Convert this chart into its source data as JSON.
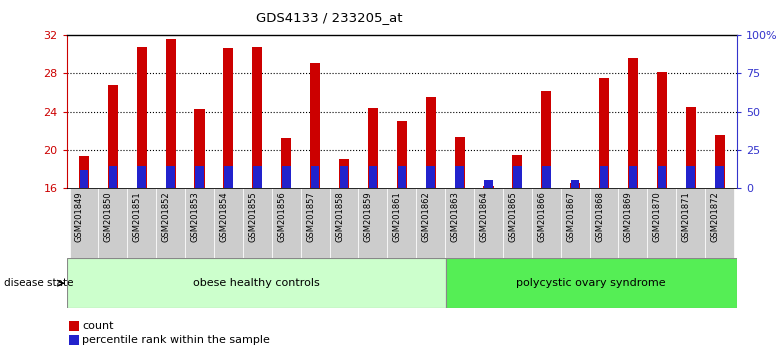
{
  "title": "GDS4133 / 233205_at",
  "samples": [
    "GSM201849",
    "GSM201850",
    "GSM201851",
    "GSM201852",
    "GSM201853",
    "GSM201854",
    "GSM201855",
    "GSM201856",
    "GSM201857",
    "GSM201858",
    "GSM201859",
    "GSM201861",
    "GSM201862",
    "GSM201863",
    "GSM201864",
    "GSM201865",
    "GSM201866",
    "GSM201867",
    "GSM201868",
    "GSM201869",
    "GSM201870",
    "GSM201871",
    "GSM201872"
  ],
  "counts": [
    19.3,
    26.8,
    30.8,
    31.6,
    24.3,
    30.7,
    30.8,
    21.2,
    29.1,
    19.0,
    24.4,
    23.0,
    25.5,
    21.3,
    16.2,
    19.4,
    26.2,
    16.5,
    27.5,
    29.6,
    28.2,
    24.5,
    21.5
  ],
  "pct_top": [
    17.8,
    18.3,
    18.3,
    18.3,
    18.3,
    18.3,
    18.3,
    18.3,
    18.3,
    18.3,
    18.3,
    18.3,
    18.3,
    18.3,
    16.8,
    18.3,
    18.3,
    16.8,
    18.3,
    18.3,
    18.3,
    18.3,
    18.3
  ],
  "bar_color": "#cc0000",
  "pct_color": "#2222cc",
  "ylim_left": [
    16,
    32
  ],
  "yticks_left": [
    16,
    20,
    24,
    28,
    32
  ],
  "ylim_right": [
    0,
    100
  ],
  "yticks_right": [
    0,
    25,
    50,
    75,
    100
  ],
  "group1_label": "obese healthy controls",
  "group2_label": "polycystic ovary syndrome",
  "n_group1": 13,
  "n_group2": 10,
  "group1_color": "#ccffcc",
  "group2_color": "#55ee55",
  "legend_count_label": "count",
  "legend_pct_label": "percentile rank within the sample",
  "disease_state_label": "disease state",
  "left_axis_color": "#cc0000",
  "right_axis_color": "#3333cc",
  "bar_width": 0.35,
  "grid_color": "#000000",
  "xtick_bg": "#cccccc",
  "top_line_color": "#000000"
}
